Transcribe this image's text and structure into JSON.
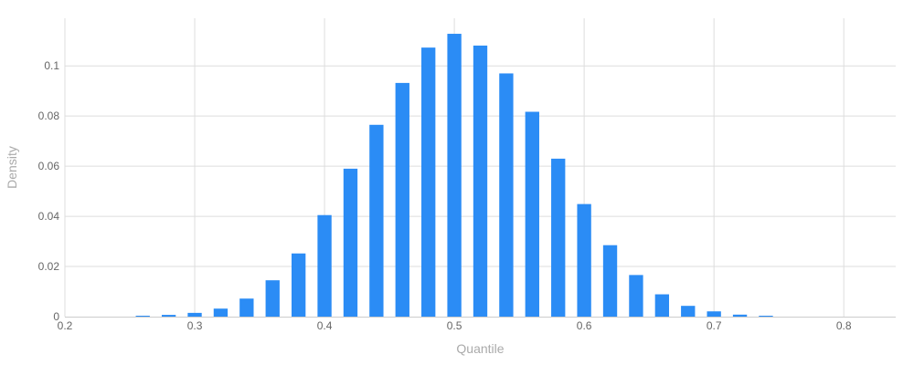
{
  "chart_data": {
    "type": "bar",
    "xlabel": "Quantile",
    "ylabel": "Density",
    "xlim": [
      0.2,
      0.84
    ],
    "ylim": [
      0,
      0.119
    ],
    "grid": true,
    "legend": "none",
    "bar_color": "#2b8cf5",
    "grid_color": "#dddddd",
    "bar_width": 0.01,
    "x_ticks": [
      "0.2",
      "0.3",
      "0.4",
      "0.5",
      "0.6",
      "0.7",
      "0.8"
    ],
    "y_ticks": [
      "0",
      "0.02",
      "0.04",
      "0.06",
      "0.08",
      "0.1"
    ],
    "x": [
      0.26,
      0.28,
      0.3,
      0.32,
      0.34,
      0.36,
      0.38,
      0.4,
      0.42,
      0.44,
      0.46,
      0.48,
      0.5,
      0.52,
      0.54,
      0.56,
      0.58,
      0.6,
      0.62,
      0.64,
      0.66,
      0.68,
      0.7,
      0.72,
      0.74
    ],
    "values": [
      0.0003,
      0.0007,
      0.0015,
      0.0032,
      0.0072,
      0.0145,
      0.0252,
      0.0405,
      0.059,
      0.0765,
      0.0932,
      0.1073,
      0.1128,
      0.1081,
      0.097,
      0.0817,
      0.063,
      0.0449,
      0.0285,
      0.0166,
      0.0089,
      0.0043,
      0.0021,
      0.0008,
      0.0003
    ]
  }
}
